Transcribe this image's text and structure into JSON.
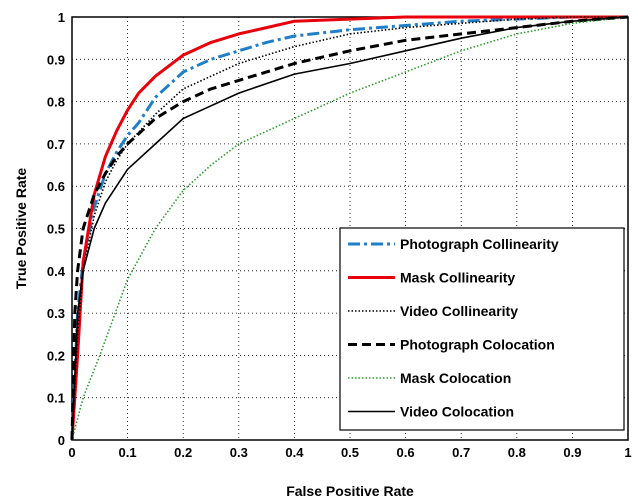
{
  "chart_data": {
    "type": "line",
    "title": "",
    "xlabel": "False Positive Rate",
    "ylabel": "True Positive Rate",
    "xlim": [
      0,
      1
    ],
    "ylim": [
      0,
      1
    ],
    "x_ticks": [
      "0",
      "0.1",
      "0.2",
      "0.3",
      "0.4",
      "0.5",
      "0.6",
      "0.7",
      "0.8",
      "0.9",
      "1"
    ],
    "y_ticks": [
      "0",
      "0.1",
      "0.2",
      "0.3",
      "0.4",
      "0.5",
      "0.6",
      "0.7",
      "0.8",
      "0.9",
      "1"
    ],
    "grid": true,
    "legend_position": "lower-right",
    "series": [
      {
        "name": "Photograph Collinearity",
        "color": "#1f7fc8",
        "dash": "dash-dot",
        "x": [
          0,
          0.01,
          0.02,
          0.04,
          0.06,
          0.08,
          0.1,
          0.12,
          0.15,
          0.2,
          0.25,
          0.3,
          0.35,
          0.4,
          0.5,
          0.6,
          0.7,
          0.8,
          0.9,
          1.0
        ],
        "y": [
          0,
          0.3,
          0.42,
          0.55,
          0.63,
          0.68,
          0.72,
          0.75,
          0.81,
          0.87,
          0.9,
          0.92,
          0.94,
          0.955,
          0.97,
          0.98,
          0.99,
          0.995,
          1.0,
          1.0
        ]
      },
      {
        "name": "Mask Collinearity",
        "color": "#e8000b",
        "dash": "solid",
        "x": [
          0,
          0.01,
          0.02,
          0.04,
          0.06,
          0.08,
          0.1,
          0.12,
          0.15,
          0.2,
          0.25,
          0.3,
          0.35,
          0.4,
          0.5,
          0.6,
          0.7,
          0.8,
          1.0
        ],
        "y": [
          0,
          0.2,
          0.42,
          0.58,
          0.67,
          0.73,
          0.78,
          0.82,
          0.86,
          0.91,
          0.94,
          0.96,
          0.975,
          0.99,
          0.995,
          1.0,
          1.0,
          1.0,
          1.0
        ]
      },
      {
        "name": "Video Collinearity",
        "color": "#000000",
        "dash": "dotted",
        "x": [
          0,
          0.01,
          0.02,
          0.04,
          0.06,
          0.08,
          0.1,
          0.15,
          0.2,
          0.3,
          0.4,
          0.5,
          0.6,
          0.7,
          0.8,
          0.9,
          1.0
        ],
        "y": [
          0,
          0.25,
          0.4,
          0.53,
          0.61,
          0.66,
          0.7,
          0.77,
          0.83,
          0.89,
          0.93,
          0.96,
          0.975,
          0.985,
          0.995,
          1.0,
          1.0
        ]
      },
      {
        "name": "Photograph Colocation",
        "color": "#000000",
        "dash": "dashed",
        "x": [
          0,
          0.005,
          0.01,
          0.02,
          0.04,
          0.06,
          0.08,
          0.1,
          0.15,
          0.2,
          0.25,
          0.3,
          0.4,
          0.5,
          0.6,
          0.7,
          0.8,
          0.9,
          1.0
        ],
        "y": [
          0,
          0.3,
          0.4,
          0.5,
          0.58,
          0.63,
          0.67,
          0.7,
          0.76,
          0.8,
          0.83,
          0.85,
          0.89,
          0.92,
          0.945,
          0.96,
          0.975,
          0.99,
          1.0
        ]
      },
      {
        "name": "Mask Colocation",
        "color": "#2a9d2a",
        "dash": "dotted",
        "x": [
          0,
          0.02,
          0.05,
          0.1,
          0.15,
          0.2,
          0.25,
          0.3,
          0.4,
          0.5,
          0.6,
          0.7,
          0.8,
          0.9,
          1.0
        ],
        "y": [
          0,
          0.1,
          0.2,
          0.38,
          0.5,
          0.59,
          0.65,
          0.7,
          0.76,
          0.82,
          0.87,
          0.92,
          0.96,
          0.985,
          1.0
        ]
      },
      {
        "name": "Video Colocation",
        "color": "#000000",
        "dash": "solid-thin",
        "x": [
          0,
          0.01,
          0.02,
          0.04,
          0.06,
          0.08,
          0.1,
          0.15,
          0.2,
          0.25,
          0.3,
          0.4,
          0.5,
          0.6,
          0.7,
          0.8,
          0.9,
          1.0
        ],
        "y": [
          0,
          0.3,
          0.4,
          0.5,
          0.56,
          0.6,
          0.64,
          0.7,
          0.76,
          0.79,
          0.82,
          0.865,
          0.89,
          0.92,
          0.95,
          0.975,
          0.99,
          1.0
        ]
      }
    ]
  }
}
